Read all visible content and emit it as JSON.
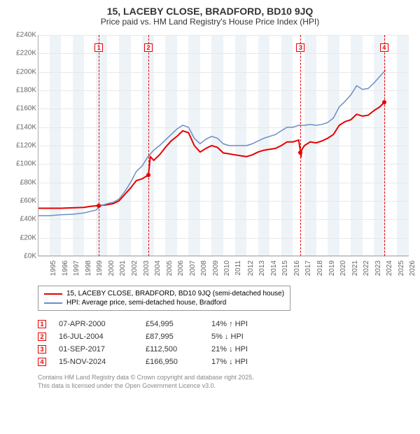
{
  "title": "15, LACEBY CLOSE, BRADFORD, BD10 9JQ",
  "subtitle": "Price paid vs. HM Land Registry's House Price Index (HPI)",
  "chart": {
    "type": "line",
    "background_color": "#ffffff",
    "band_color": "#eef3f7",
    "grid_color": "#e8e8e8",
    "axis_color": "#aaaaaa",
    "text_color": "#666666",
    "ylim": [
      0,
      240000
    ],
    "ytick_step": 20000,
    "yticks": [
      "£0K",
      "£20K",
      "£40K",
      "£60K",
      "£80K",
      "£100K",
      "£120K",
      "£140K",
      "£160K",
      "£180K",
      "£200K",
      "£220K",
      "£240K"
    ],
    "xlim": [
      1995,
      2027
    ],
    "xticks": [
      1995,
      1996,
      1997,
      1998,
      1999,
      2000,
      2001,
      2002,
      2003,
      2004,
      2005,
      2006,
      2007,
      2008,
      2009,
      2010,
      2011,
      2012,
      2013,
      2014,
      2015,
      2016,
      2017,
      2018,
      2019,
      2020,
      2021,
      2022,
      2023,
      2024,
      2025,
      2026,
      2027
    ],
    "series": [
      {
        "name_key": "legend.s1",
        "color": "#e60000",
        "width": 2,
        "data": [
          [
            1995.0,
            52000
          ],
          [
            1996.0,
            52000
          ],
          [
            1997.0,
            52000
          ],
          [
            1998.0,
            52500
          ],
          [
            1999.0,
            53000
          ],
          [
            1999.5,
            54000
          ],
          [
            2000.27,
            54995
          ],
          [
            2000.8,
            55500
          ],
          [
            2001.5,
            57000
          ],
          [
            2002.0,
            60000
          ],
          [
            2002.5,
            67000
          ],
          [
            2003.0,
            74000
          ],
          [
            2003.5,
            82000
          ],
          [
            2004.0,
            84000
          ],
          [
            2004.54,
            87995
          ],
          [
            2004.7,
            108000
          ],
          [
            2005.0,
            104000
          ],
          [
            2005.5,
            110000
          ],
          [
            2006.0,
            118000
          ],
          [
            2006.5,
            125000
          ],
          [
            2007.0,
            130000
          ],
          [
            2007.5,
            136000
          ],
          [
            2008.0,
            134000
          ],
          [
            2008.5,
            120000
          ],
          [
            2009.0,
            113000
          ],
          [
            2009.5,
            117000
          ],
          [
            2010.0,
            120000
          ],
          [
            2010.5,
            118000
          ],
          [
            2011.0,
            112000
          ],
          [
            2011.5,
            111000
          ],
          [
            2012.0,
            110000
          ],
          [
            2012.5,
            109000
          ],
          [
            2013.0,
            108000
          ],
          [
            2013.5,
            110000
          ],
          [
            2014.0,
            113000
          ],
          [
            2014.5,
            115000
          ],
          [
            2015.0,
            116000
          ],
          [
            2015.5,
            117000
          ],
          [
            2016.0,
            120000
          ],
          [
            2016.5,
            124000
          ],
          [
            2017.0,
            124000
          ],
          [
            2017.5,
            126000
          ],
          [
            2017.67,
            112500
          ],
          [
            2017.7,
            107000
          ],
          [
            2017.75,
            115000
          ],
          [
            2018.0,
            120000
          ],
          [
            2018.5,
            124000
          ],
          [
            2019.0,
            123000
          ],
          [
            2019.5,
            125000
          ],
          [
            2020.0,
            128000
          ],
          [
            2020.5,
            132000
          ],
          [
            2021.0,
            142000
          ],
          [
            2021.5,
            146000
          ],
          [
            2022.0,
            148000
          ],
          [
            2022.5,
            154000
          ],
          [
            2023.0,
            152000
          ],
          [
            2023.5,
            153000
          ],
          [
            2024.0,
            158000
          ],
          [
            2024.5,
            162000
          ],
          [
            2024.87,
            166950
          ]
        ]
      },
      {
        "name_key": "legend.s2",
        "color": "#6a8fc5",
        "width": 1.5,
        "data": [
          [
            1995.0,
            44000
          ],
          [
            1996.0,
            44000
          ],
          [
            1997.0,
            45000
          ],
          [
            1998.0,
            45500
          ],
          [
            1999.0,
            47000
          ],
          [
            2000.0,
            50000
          ],
          [
            2000.5,
            55000
          ],
          [
            2001.0,
            57000
          ],
          [
            2001.5,
            58500
          ],
          [
            2002.0,
            62000
          ],
          [
            2002.5,
            70000
          ],
          [
            2003.0,
            80000
          ],
          [
            2003.5,
            92000
          ],
          [
            2004.0,
            98000
          ],
          [
            2004.5,
            108000
          ],
          [
            2005.0,
            115000
          ],
          [
            2005.5,
            120000
          ],
          [
            2006.0,
            126000
          ],
          [
            2006.5,
            132000
          ],
          [
            2007.0,
            138000
          ],
          [
            2007.5,
            142000
          ],
          [
            2008.0,
            140000
          ],
          [
            2008.5,
            128000
          ],
          [
            2009.0,
            122000
          ],
          [
            2009.5,
            127000
          ],
          [
            2010.0,
            130000
          ],
          [
            2010.5,
            128000
          ],
          [
            2011.0,
            122000
          ],
          [
            2011.5,
            120000
          ],
          [
            2012.0,
            120000
          ],
          [
            2012.5,
            120000
          ],
          [
            2013.0,
            120000
          ],
          [
            2013.5,
            122000
          ],
          [
            2014.0,
            125000
          ],
          [
            2014.5,
            128000
          ],
          [
            2015.0,
            130000
          ],
          [
            2015.5,
            132000
          ],
          [
            2016.0,
            136000
          ],
          [
            2016.5,
            140000
          ],
          [
            2017.0,
            140000
          ],
          [
            2017.5,
            142000
          ],
          [
            2018.0,
            142000
          ],
          [
            2018.5,
            143000
          ],
          [
            2019.0,
            142000
          ],
          [
            2019.5,
            143000
          ],
          [
            2020.0,
            145000
          ],
          [
            2020.5,
            150000
          ],
          [
            2021.0,
            162000
          ],
          [
            2021.5,
            168000
          ],
          [
            2022.0,
            175000
          ],
          [
            2022.5,
            185000
          ],
          [
            2023.0,
            181000
          ],
          [
            2023.5,
            182000
          ],
          [
            2024.0,
            188000
          ],
          [
            2024.5,
            195000
          ],
          [
            2025.0,
            202000
          ]
        ]
      }
    ],
    "event_markers": [
      {
        "n": "1",
        "x": 2000.27,
        "y": 54995,
        "color": "#e60000"
      },
      {
        "n": "2",
        "x": 2004.54,
        "y": 87995,
        "color": "#e60000"
      },
      {
        "n": "3",
        "x": 2017.67,
        "y": 112500,
        "color": "#e60000"
      },
      {
        "n": "4",
        "x": 2024.87,
        "y": 166950,
        "color": "#e60000"
      }
    ]
  },
  "legend": {
    "s1": "15, LACEBY CLOSE, BRADFORD, BD10 9JQ (semi-detached house)",
    "s2": "HPI: Average price, semi-detached house, Bradford"
  },
  "events": [
    {
      "n": "1",
      "date": "07-APR-2000",
      "price": "£54,995",
      "diff": "14% ↑ HPI",
      "dir": "up",
      "color": "#e60000"
    },
    {
      "n": "2",
      "date": "16-JUL-2004",
      "price": "£87,995",
      "diff": "5% ↓ HPI",
      "dir": "down",
      "color": "#e60000"
    },
    {
      "n": "3",
      "date": "01-SEP-2017",
      "price": "£112,500",
      "diff": "21% ↓ HPI",
      "dir": "down",
      "color": "#e60000"
    },
    {
      "n": "4",
      "date": "15-NOV-2024",
      "price": "£166,950",
      "diff": "17% ↓ HPI",
      "dir": "down",
      "color": "#e60000"
    }
  ],
  "footer": {
    "line1": "Contains HM Land Registry data © Crown copyright and database right 2025.",
    "line2": "This data is licensed under the Open Government Licence v3.0."
  }
}
